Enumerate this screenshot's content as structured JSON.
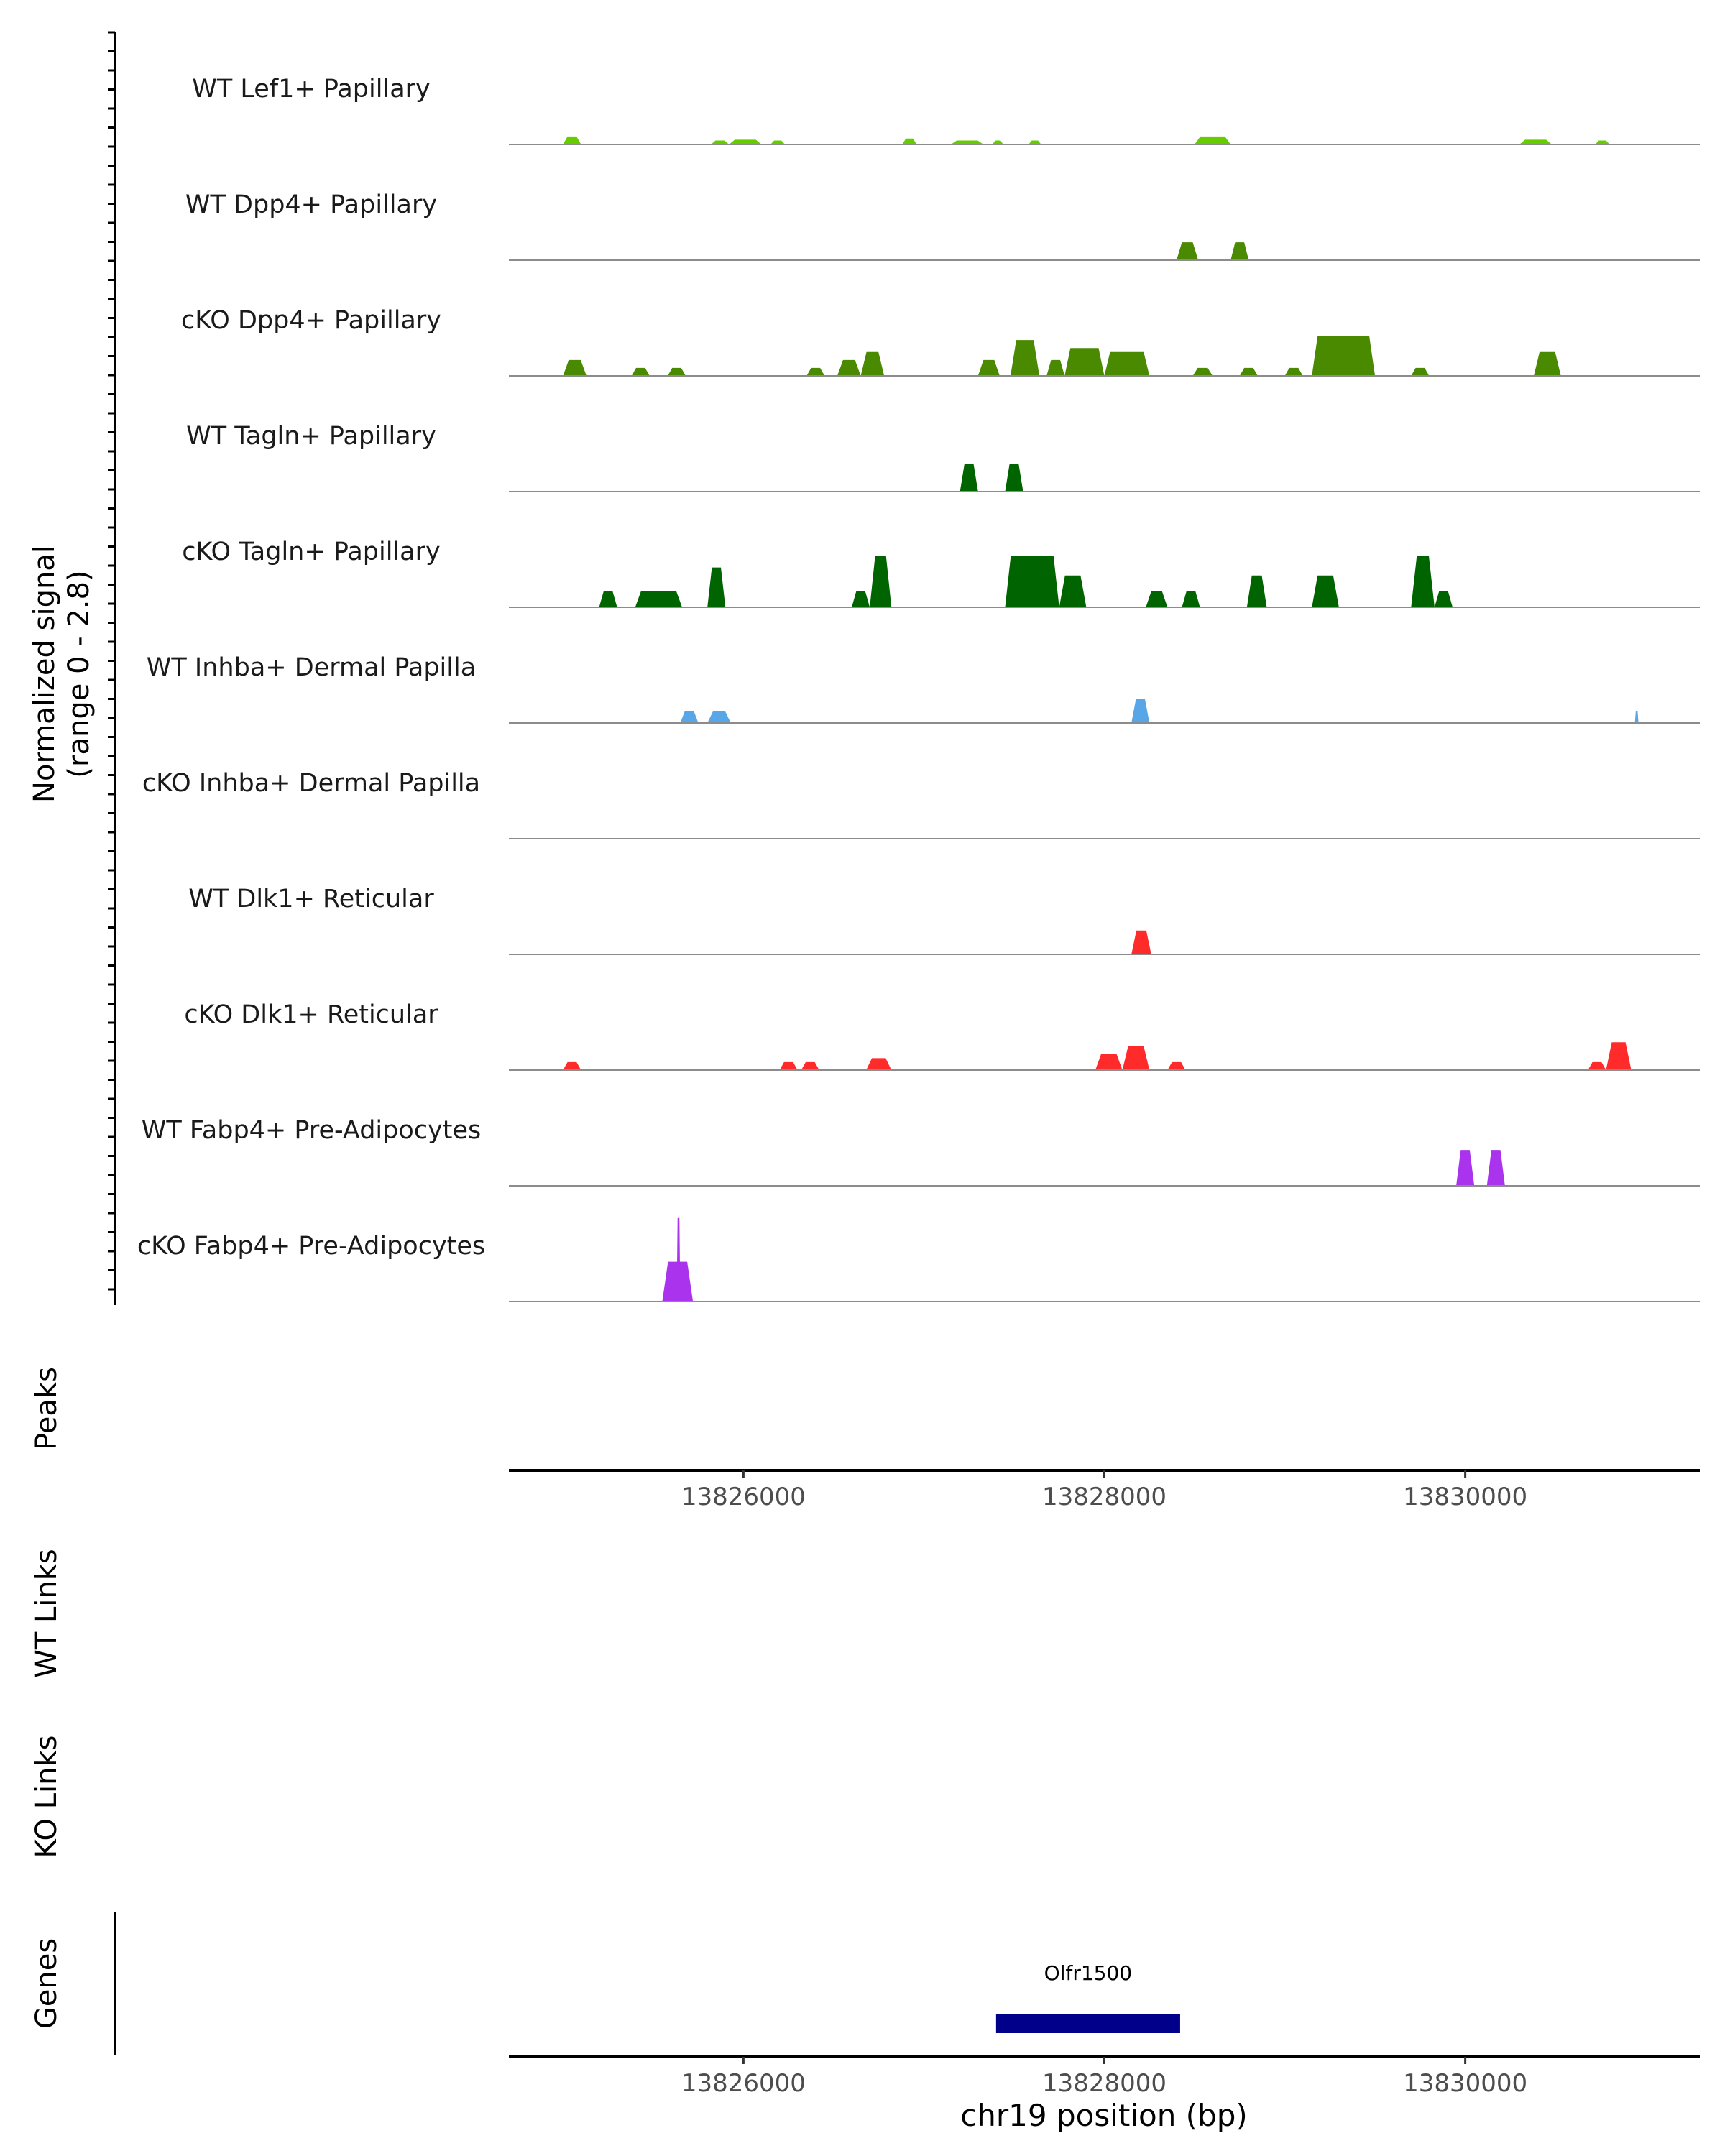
{
  "chart_data": {
    "type": "area",
    "genome_unit": "chr19 position (bp)",
    "region": [
      13824700,
      13831300
    ],
    "signal_axis": {
      "label_line1": "Normalized signal",
      "label_line2": "(range 0 - 2.8)",
      "range": [
        0,
        2.8
      ]
    },
    "panel_labels": {
      "peaks": "Peaks",
      "wt_links": "WT Links",
      "ko_links": "KO Links",
      "genes": "Genes"
    },
    "x_ticks": [
      {
        "value": 13826000,
        "label": "13826000"
      },
      {
        "value": 13828000,
        "label": "13828000"
      },
      {
        "value": 13830000,
        "label": "13830000"
      }
    ],
    "xlabel": "chr19 position (bp)",
    "tracks": [
      {
        "name": "WT Lef1+ Papillary",
        "color": "#66cc00",
        "peaks": [
          [
            13825000,
            13825100,
            0.2
          ],
          [
            13825820,
            13825920,
            0.1
          ],
          [
            13825920,
            13826100,
            0.12
          ],
          [
            13826150,
            13826230,
            0.1
          ],
          [
            13826880,
            13826960,
            0.15
          ],
          [
            13827150,
            13827330,
            0.1
          ],
          [
            13827380,
            13827440,
            0.1
          ],
          [
            13827580,
            13827650,
            0.1
          ],
          [
            13828500,
            13828700,
            0.2
          ],
          [
            13830300,
            13830480,
            0.12
          ],
          [
            13830720,
            13830800,
            0.1
          ]
        ]
      },
      {
        "name": "WT Dpp4+ Papillary",
        "color": "#4a8a00",
        "peaks": [
          [
            13828400,
            13828520,
            0.45
          ],
          [
            13828700,
            13828800,
            0.45
          ]
        ]
      },
      {
        "name": "cKO Dpp4+ Papillary",
        "color": "#4a8a00",
        "peaks": [
          [
            13825000,
            13825130,
            0.4
          ],
          [
            13825380,
            13825480,
            0.2
          ],
          [
            13825580,
            13825680,
            0.2
          ],
          [
            13826350,
            13826450,
            0.2
          ],
          [
            13826520,
            13826650,
            0.4
          ],
          [
            13826650,
            13826780,
            0.6
          ],
          [
            13827300,
            13827420,
            0.4
          ],
          [
            13827480,
            13827640,
            0.9
          ],
          [
            13827680,
            13827780,
            0.4
          ],
          [
            13827780,
            13828000,
            0.7
          ],
          [
            13828000,
            13828250,
            0.6
          ],
          [
            13828490,
            13828600,
            0.2
          ],
          [
            13828750,
            13828850,
            0.2
          ],
          [
            13829000,
            13829100,
            0.2
          ],
          [
            13829150,
            13829500,
            1.0
          ],
          [
            13829700,
            13829800,
            0.2
          ],
          [
            13830380,
            13830530,
            0.6
          ]
        ]
      },
      {
        "name": "WT Tagln+ Papillary",
        "color": "#006400",
        "peaks": [
          [
            13827200,
            13827300,
            0.7
          ],
          [
            13827450,
            13827550,
            0.7
          ]
        ]
      },
      {
        "name": "cKO Tagln+ Papillary",
        "color": "#006400",
        "peaks": [
          [
            13825200,
            13825300,
            0.4
          ],
          [
            13825400,
            13825660,
            0.4
          ],
          [
            13825800,
            13825900,
            1.0
          ],
          [
            13826600,
            13826700,
            0.4
          ],
          [
            13826700,
            13826820,
            1.3
          ],
          [
            13827450,
            13827750,
            1.3
          ],
          [
            13827750,
            13827900,
            0.8
          ],
          [
            13828230,
            13828350,
            0.4
          ],
          [
            13828430,
            13828530,
            0.4
          ],
          [
            13828790,
            13828900,
            0.8
          ],
          [
            13829150,
            13829300,
            0.8
          ],
          [
            13829700,
            13829830,
            1.3
          ],
          [
            13829830,
            13829930,
            0.4
          ]
        ]
      },
      {
        "name": "WT Inhba+ Dermal Papilla",
        "color": "#56a6e8",
        "peaks": [
          [
            13825650,
            13825750,
            0.3
          ],
          [
            13825800,
            13825930,
            0.3
          ],
          [
            13828150,
            13828250,
            0.6
          ],
          [
            13830940,
            13830960,
            0.3
          ]
        ]
      },
      {
        "name": "cKO Inhba+ Dermal Papilla",
        "color": "#56a6e8",
        "peaks": []
      },
      {
        "name": "WT Dlk1+ Reticular",
        "color": "#ff2a2a",
        "peaks": [
          [
            13828150,
            13828260,
            0.6
          ]
        ]
      },
      {
        "name": "cKO Dlk1+ Reticular",
        "color": "#ff2a2a",
        "peaks": [
          [
            13825000,
            13825100,
            0.2
          ],
          [
            13826200,
            13826300,
            0.2
          ],
          [
            13826320,
            13826420,
            0.2
          ],
          [
            13826680,
            13826820,
            0.3
          ],
          [
            13827950,
            13828100,
            0.4
          ],
          [
            13828100,
            13828250,
            0.6
          ],
          [
            13828350,
            13828450,
            0.2
          ],
          [
            13830680,
            13830780,
            0.2
          ],
          [
            13830780,
            13830920,
            0.7
          ]
        ]
      },
      {
        "name": "WT Fabp4+ Pre-Adipocytes",
        "color": "#aa33ee",
        "peaks": [
          [
            13829950,
            13830050,
            0.9
          ],
          [
            13830120,
            13830220,
            0.9
          ]
        ]
      },
      {
        "name": "cKO Fabp4+ Pre-Adipocytes",
        "color": "#aa33ee",
        "peaks": [
          [
            13825550,
            13825720,
            1.0
          ],
          [
            13825630,
            13825650,
            2.1
          ]
        ]
      }
    ],
    "genes": [
      {
        "name": "Olfr1500",
        "start": 13827400,
        "end": 13828420,
        "color": "#00008b"
      }
    ]
  }
}
